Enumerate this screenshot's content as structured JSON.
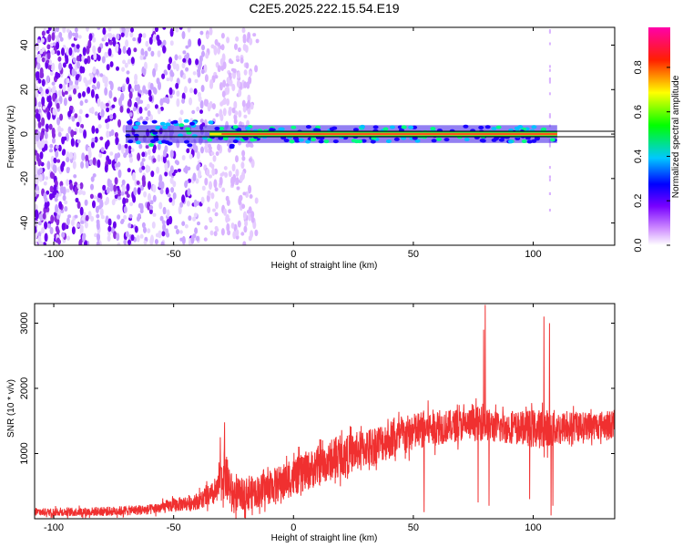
{
  "title": "C2E5.2025.222.15.54.E19",
  "chart_data": [
    {
      "type": "heatmap",
      "xlabel": "Height of straight line (km)",
      "ylabel": "Frequency (Hz)",
      "xlim": [
        -108,
        134
      ],
      "ylim": [
        -50,
        48
      ],
      "xticks": [
        -100,
        -50,
        0,
        50,
        100
      ],
      "yticks": [
        -40,
        -20,
        0,
        20,
        40
      ],
      "colorbar": {
        "label": "Normalized spectral amplitude",
        "range": [
          0.0,
          0.98
        ],
        "ticks": [
          "0.0",
          "0.2",
          "0.4",
          "0.6",
          "0.8"
        ],
        "colors": [
          "#ffffff",
          "#9900ff",
          "#0000ff",
          "#00ffff",
          "#00ff00",
          "#ffff00",
          "#ff0000",
          "#ff00aa"
        ]
      },
      "features": {
        "noise_region_x": [
          -108,
          -20
        ],
        "signal_line_hz": 0,
        "signal_start_km": -70,
        "signal_end_km": 110,
        "scatter_column_km": 107
      }
    },
    {
      "type": "line",
      "xlabel": "Height of straight line (km)",
      "ylabel": "SNR (10 * v/v)",
      "xlim": [
        -108,
        134
      ],
      "ylim": [
        0,
        3300
      ],
      "xticks": [
        -100,
        -50,
        0,
        50,
        100
      ],
      "yticks": [
        1000,
        2000,
        3000
      ],
      "color": "#f03030",
      "envelope_x": [
        -108,
        -80,
        -60,
        -40,
        -32,
        -29,
        -25,
        -15,
        -5,
        5,
        20,
        35,
        50,
        55,
        65,
        75,
        79,
        80,
        85,
        95,
        100,
        105,
        108,
        112,
        120,
        134
      ],
      "envelope_mean": [
        100,
        110,
        140,
        270,
        400,
        700,
        350,
        420,
        550,
        720,
        950,
        1150,
        1320,
        1380,
        1420,
        1450,
        1500,
        1450,
        1400,
        1400,
        1380,
        1380,
        1380,
        1400,
        1420,
        1450
      ],
      "envelope_spread": [
        60,
        70,
        80,
        130,
        200,
        400,
        250,
        250,
        280,
        300,
        300,
        300,
        300,
        300,
        250,
        250,
        300,
        250,
        250,
        250,
        300,
        300,
        300,
        250,
        220,
        220
      ],
      "spikes": [
        {
          "x": 80.0,
          "y": 3280
        },
        {
          "x": 79.3,
          "y": 2900
        },
        {
          "x": 104.5,
          "y": 3100
        },
        {
          "x": 106.8,
          "y": 3000
        },
        {
          "x": -28.8,
          "y": 1480
        },
        {
          "x": -30.5,
          "y": 1250
        },
        {
          "x": 54.5,
          "y": 100
        },
        {
          "x": 77.0,
          "y": 250
        },
        {
          "x": 81.6,
          "y": 200
        },
        {
          "x": 98.5,
          "y": 300
        },
        {
          "x": 107.5,
          "y": 50
        },
        {
          "x": 108.2,
          "y": 200
        }
      ]
    }
  ]
}
